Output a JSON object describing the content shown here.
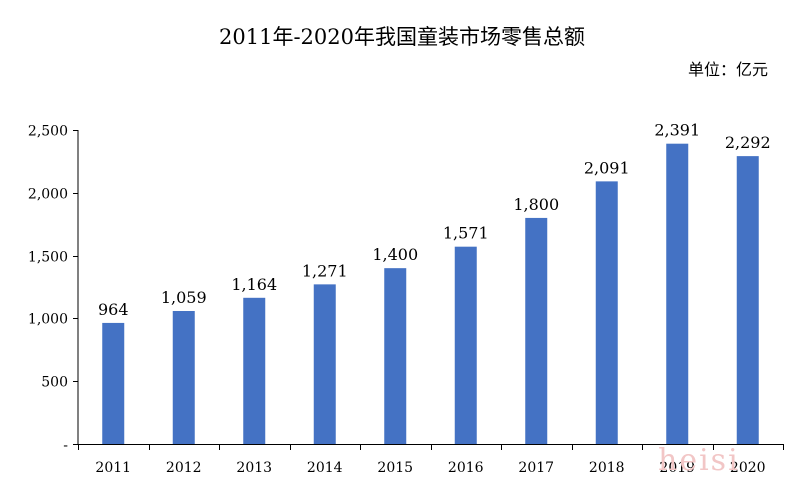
{
  "chart_data": {
    "type": "bar",
    "title": "2011年-2020年我国童装市场零售总额",
    "unit_label": "单位：亿元",
    "xlabel": "",
    "ylabel": "",
    "categories": [
      "2011",
      "2012",
      "2013",
      "2014",
      "2015",
      "2016",
      "2017",
      "2018",
      "2019",
      "2020"
    ],
    "values": [
      964,
      1059,
      1164,
      1271,
      1400,
      1571,
      1800,
      2091,
      2391,
      2292
    ],
    "value_labels": [
      "964",
      "1,059",
      "1,164",
      "1,271",
      "1,400",
      "1,571",
      "1,800",
      "2,091",
      "2,391",
      "2,292"
    ],
    "ylim": [
      0,
      2500
    ],
    "yticks": [
      0,
      500,
      1000,
      1500,
      2000,
      2500
    ],
    "ytick_labels": [
      "-",
      "500",
      "1,000",
      "1,500",
      "2,000",
      "2,500"
    ],
    "grid": false,
    "legend": "none",
    "bar_color": "#4472c4",
    "axis_color": "#000000"
  },
  "watermark": "heisi",
  "watermark_color": "#f2c6c6"
}
